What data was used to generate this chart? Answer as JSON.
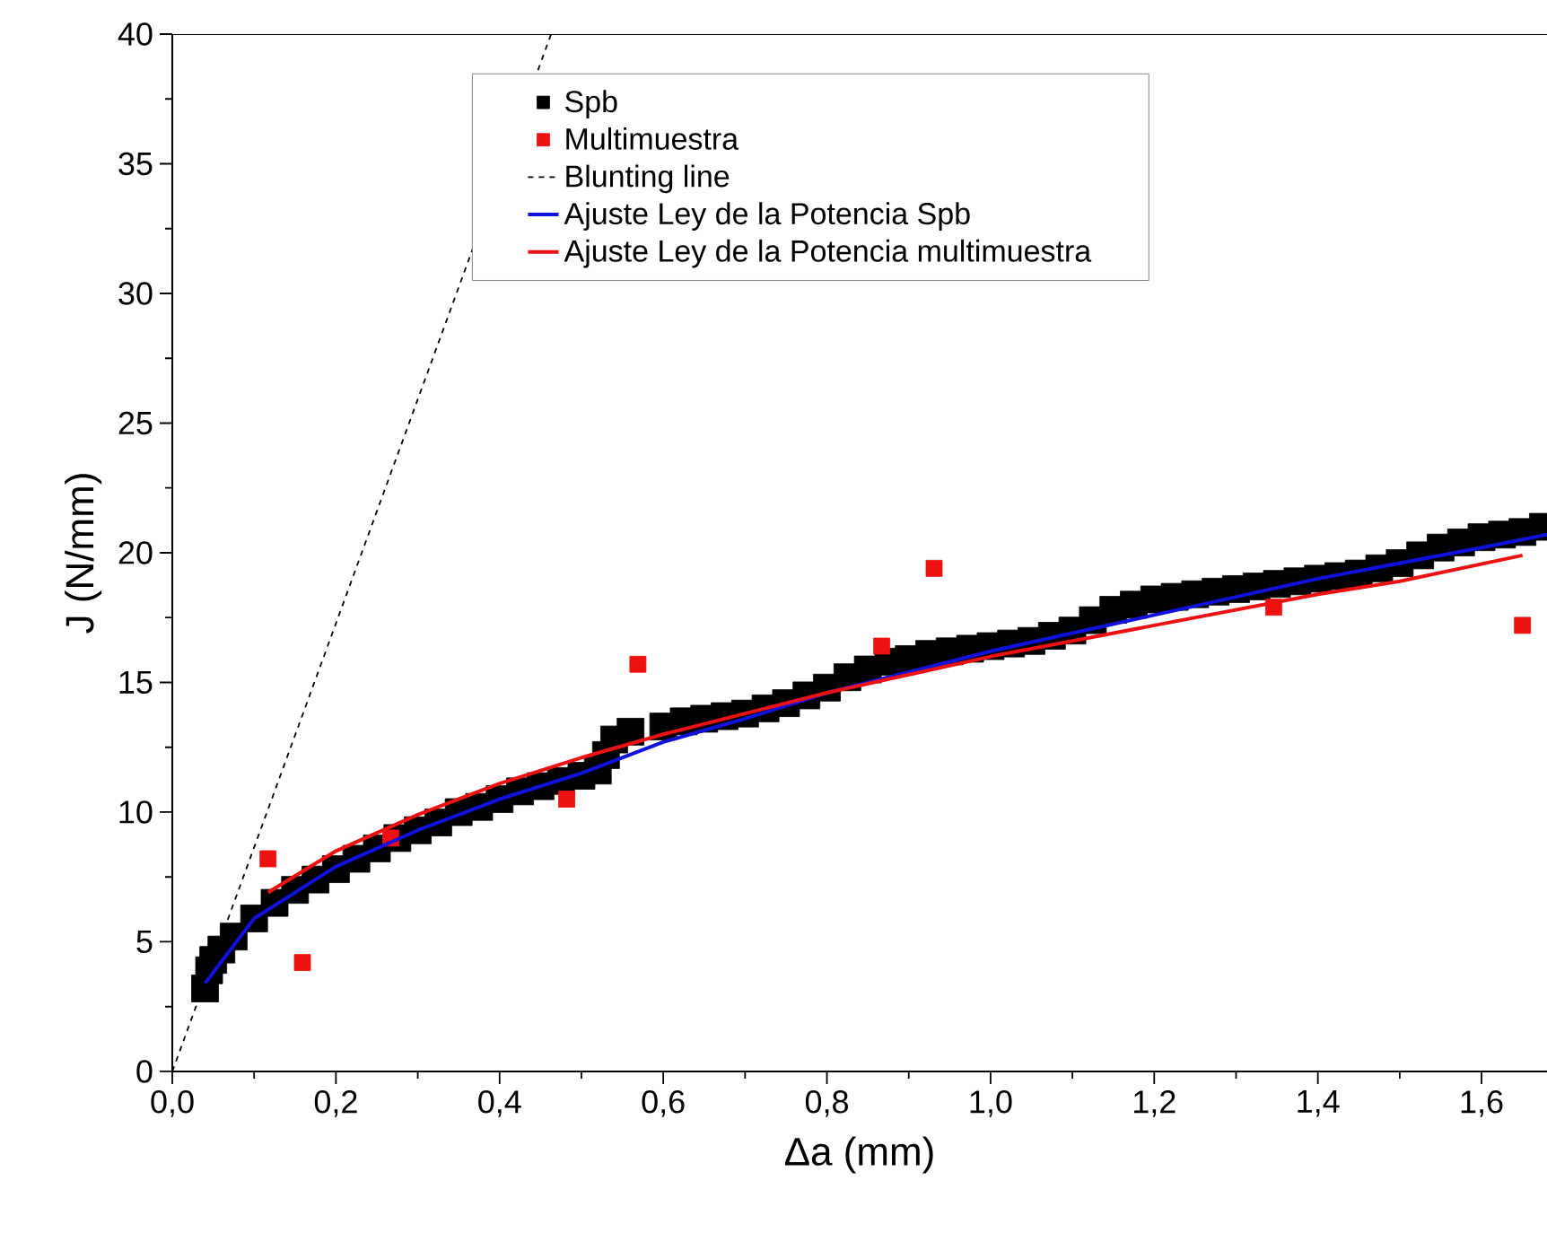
{
  "chart_data": {
    "type": "scatter",
    "xlabel": "Δa (mm)",
    "ylabel": "J (N/mm)",
    "xlim": [
      0,
      1.68
    ],
    "ylim": [
      0,
      40
    ],
    "xticks": [
      {
        "value": 0,
        "label": "0,0"
      },
      {
        "value": 0.2,
        "label": "0,2"
      },
      {
        "value": 0.4,
        "label": "0,4"
      },
      {
        "value": 0.6,
        "label": "0,6"
      },
      {
        "value": 0.8,
        "label": "0,8"
      },
      {
        "value": 1.0,
        "label": "1,0"
      },
      {
        "value": 1.2,
        "label": "1,2"
      },
      {
        "value": 1.4,
        "label": "1,4"
      },
      {
        "value": 1.6,
        "label": "1,6"
      }
    ],
    "yticks": [
      0,
      5,
      10,
      15,
      20,
      25,
      30,
      35,
      40
    ],
    "legend": "top right",
    "series": [
      {
        "name": "Spb",
        "marker": "square",
        "color": "#000000",
        "x": [
          0.04,
          0.045,
          0.05,
          0.06,
          0.075,
          0.1,
          0.125,
          0.15,
          0.175,
          0.2,
          0.225,
          0.25,
          0.275,
          0.3,
          0.325,
          0.35,
          0.375,
          0.4,
          0.425,
          0.45,
          0.475,
          0.5,
          0.52,
          0.53,
          0.54,
          0.56,
          0.6,
          0.625,
          0.65,
          0.675,
          0.7,
          0.725,
          0.75,
          0.775,
          0.8,
          0.825,
          0.85,
          0.875,
          0.9,
          0.925,
          0.95,
          0.975,
          1.0,
          1.025,
          1.05,
          1.075,
          1.1,
          1.125,
          1.15,
          1.175,
          1.2,
          1.225,
          1.25,
          1.275,
          1.3,
          1.325,
          1.35,
          1.375,
          1.4,
          1.425,
          1.45,
          1.475,
          1.5,
          1.525,
          1.55,
          1.575,
          1.6,
          1.625,
          1.65,
          1.675
        ],
        "values": [
          3.2,
          3.9,
          4.3,
          4.7,
          5.2,
          5.9,
          6.5,
          7.0,
          7.4,
          7.8,
          8.2,
          8.6,
          9.0,
          9.3,
          9.6,
          10.0,
          10.2,
          10.5,
          10.8,
          11.0,
          11.2,
          11.4,
          11.6,
          12.2,
          12.8,
          13.1,
          13.3,
          13.5,
          13.6,
          13.7,
          13.8,
          14.0,
          14.2,
          14.5,
          14.8,
          15.2,
          15.5,
          15.8,
          15.9,
          16.1,
          16.2,
          16.3,
          16.4,
          16.5,
          16.6,
          16.8,
          17.0,
          17.4,
          17.8,
          18.0,
          18.2,
          18.3,
          18.4,
          18.5,
          18.6,
          18.7,
          18.8,
          18.9,
          19.0,
          19.1,
          19.2,
          19.4,
          19.6,
          19.9,
          20.2,
          20.4,
          20.6,
          20.7,
          20.8,
          21.0
        ]
      },
      {
        "name": "Multimuestra",
        "marker": "square",
        "color": "#ee1111",
        "x": [
          0.117,
          0.159,
          0.267,
          0.482,
          0.569,
          0.867,
          0.931,
          1.346,
          1.65
        ],
        "values": [
          8.2,
          4.2,
          9.0,
          10.5,
          15.7,
          16.4,
          19.4,
          17.9,
          17.2
        ]
      },
      {
        "name": "Blunting line",
        "type": "line",
        "line_style": "dashed",
        "color": "#000000",
        "x": [
          0,
          0.463
        ],
        "values": [
          0,
          40
        ]
      },
      {
        "name": "Ajuste Ley de la Potencia Spb",
        "type": "line",
        "line_style": "solid",
        "color": "#1111dd",
        "x": [
          0.04,
          0.1,
          0.2,
          0.3,
          0.4,
          0.5,
          0.6,
          0.7,
          0.8,
          0.9,
          1.0,
          1.1,
          1.2,
          1.3,
          1.4,
          1.5,
          1.6,
          1.68
        ],
        "values": [
          3.4,
          5.9,
          7.9,
          9.3,
          10.5,
          11.5,
          12.7,
          13.6,
          14.6,
          15.4,
          16.2,
          16.9,
          17.6,
          18.3,
          19.0,
          19.6,
          20.2,
          20.7
        ]
      },
      {
        "name": "Ajuste Ley de la Potencia multimuestra",
        "type": "line",
        "line_style": "solid",
        "color": "#ee1111",
        "x": [
          0.117,
          0.2,
          0.3,
          0.4,
          0.5,
          0.6,
          0.7,
          0.8,
          0.9,
          1.0,
          1.1,
          1.2,
          1.3,
          1.4,
          1.5,
          1.65
        ],
        "values": [
          6.9,
          8.5,
          9.9,
          11.1,
          12.1,
          13.0,
          13.8,
          14.6,
          15.3,
          16.0,
          16.6,
          17.2,
          17.8,
          18.4,
          18.9,
          19.9
        ]
      }
    ]
  }
}
